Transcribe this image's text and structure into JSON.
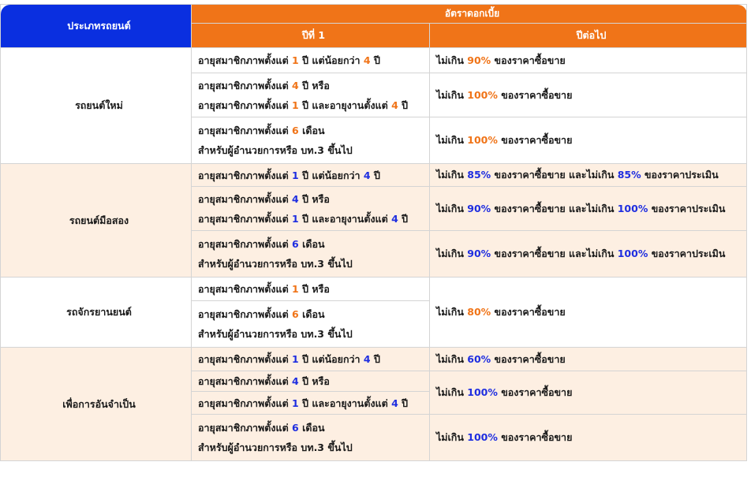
{
  "colors": {
    "header_blue": "#0a2fe0",
    "header_orange": "#f07418",
    "alt_row": "#fdefe2",
    "num_orange": "#f07418",
    "num_blue": "#1f2ee0"
  },
  "header": {
    "vehicle_type": "ประเภทรถยนต์",
    "interest_rate": "อัตราดอกเบี้ย",
    "year1": "ปีที่ 1",
    "next_years": "ปีต่อไป"
  },
  "sections": [
    {
      "type": "รถยนต์ใหม่",
      "rows": [
        {
          "cond": [
            [
              "อายุสมาชิกภาพตั้งแต่ ",
              "1",
              " ปี แต่น้อยกว่า ",
              "4",
              " ปี"
            ]
          ],
          "rate": [
            "ไม่เกิน ",
            "90%",
            " ของราคาซื้อขาย"
          ]
        },
        {
          "cond": [
            [
              "อายุสมาชิกภาพตั้งแต่ ",
              "4",
              " ปี หรือ"
            ],
            [
              "อายุสมาชิกภาพตั้งแต่ ",
              "1",
              " ปี และอายุงานตั้งแต่ ",
              "4",
              " ปี"
            ]
          ],
          "rate": [
            "ไม่เกิน ",
            "100%",
            " ของราคาซื้อขาย"
          ]
        },
        {
          "cond": [
            [
              "อายุสมาชิกภาพตั้งแต่ ",
              "6",
              " เดือน"
            ],
            [
              "สำหรับผู้อำนวยการหรือ บท.3 ขึ้นไป"
            ]
          ],
          "rate": [
            "ไม่เกิน ",
            "100%",
            " ของราคาซื้อขาย"
          ]
        }
      ]
    },
    {
      "type": "รถยนต์มือสอง",
      "rows": [
        {
          "cond": [
            [
              "อายุสมาชิกภาพตั้งแต่ ",
              "1",
              " ปี แต่น้อยกว่า ",
              "4",
              " ปี"
            ]
          ],
          "rate": [
            "ไม่เกิน ",
            "85%",
            " ของราคาซื้อขาย และไม่เกิน ",
            "85%",
            " ของราคาประเมิน"
          ]
        },
        {
          "cond": [
            [
              "อายุสมาชิกภาพตั้งแต่ ",
              "4",
              " ปี หรือ"
            ],
            [
              "อายุสมาชิกภาพตั้งแต่ ",
              "1",
              " ปี และอายุงานตั้งแต่ ",
              "4",
              " ปี"
            ]
          ],
          "rate": [
            "ไม่เกิน ",
            "90%",
            " ของราคาซื้อขาย และไม่เกิน ",
            "100%",
            " ของราคาประเมิน"
          ]
        },
        {
          "cond": [
            [
              "อายุสมาชิกภาพตั้งแต่ ",
              "6",
              " เดือน"
            ],
            [
              "สำหรับผู้อำนวยการหรือ บท.3 ขึ้นไป"
            ]
          ],
          "rate": [
            "ไม่เกิน ",
            "90%",
            " ของราคาซื้อขาย และไม่เกิน ",
            "100%",
            " ของราคาประเมิน"
          ]
        }
      ]
    },
    {
      "type": "รถจักรยานยนต์",
      "rows": [
        {
          "cond": [
            [
              "อายุสมาชิกภาพตั้งแต่ ",
              "1",
              " ปี หรือ"
            ]
          ],
          "rate": [
            "ไม่เกิน ",
            "80%",
            " ของราคาซื้อขาย"
          ]
        },
        {
          "cond": [
            [
              "อายุสมาชิกภาพตั้งแต่ ",
              "6",
              " เดือน"
            ],
            [
              "สำหรับผู้อำนวยการหรือ บท.3 ขึ้นไป"
            ]
          ]
        }
      ]
    },
    {
      "type": "เพื่อการอันจำเป็น",
      "rows": [
        {
          "cond": [
            [
              "อายุสมาชิกภาพตั้งแต่ ",
              "1",
              " ปี แต่น้อยกว่า ",
              "4",
              " ปี"
            ]
          ],
          "rate": [
            "ไม่เกิน ",
            "60%",
            " ของราคาซื้อขาย"
          ]
        },
        {
          "cond": [
            [
              "อายุสมาชิกภาพตั้งแต่ ",
              "4",
              " ปี หรือ"
            ]
          ],
          "rate": [
            "ไม่เกิน ",
            "100%",
            " ของราคาซื้อขาย"
          ]
        },
        {
          "cond": [
            [
              "อายุสมาชิกภาพตั้งแต่ ",
              "1",
              " ปี และอายุงานตั้งแต่ ",
              "4",
              " ปี"
            ]
          ]
        },
        {
          "cond": [
            [
              "อายุสมาชิกภาพตั้งแต่ ",
              "6",
              " เดือน"
            ],
            [
              "สำหรับผู้อำนวยการหรือ บท.3 ขึ้นไป"
            ]
          ],
          "rate": [
            "ไม่เกิน ",
            "100%",
            " ของราคาซื้อขาย"
          ]
        }
      ]
    }
  ]
}
